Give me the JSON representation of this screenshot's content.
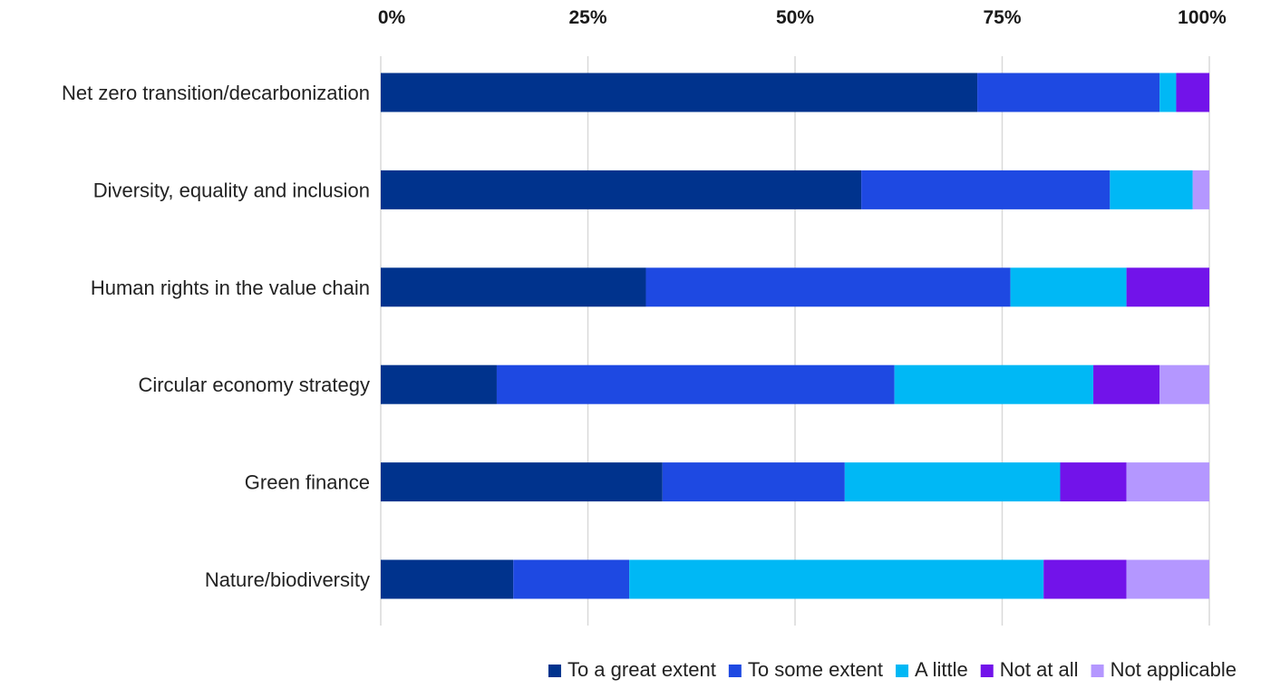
{
  "chart_data": {
    "type": "bar",
    "orientation": "horizontal",
    "stacked": true,
    "percent_stacked": true,
    "categories": [
      "Net zero transition/decarbonization",
      "Diversity, equality and inclusion",
      "Human rights in the value chain",
      "Circular economy strategy",
      "Green finance",
      "Nature/biodiversity"
    ],
    "series": [
      {
        "name": "To a great extent",
        "color": "#00338D",
        "values": [
          72,
          58,
          32,
          14,
          34,
          16
        ]
      },
      {
        "name": "To some extent",
        "color": "#1E49E2",
        "values": [
          22,
          30,
          44,
          48,
          22,
          14
        ]
      },
      {
        "name": "A little",
        "color": "#00B8F5",
        "values": [
          2,
          10,
          14,
          24,
          26,
          50
        ]
      },
      {
        "name": "Not at all",
        "color": "#7213EA",
        "values": [
          4,
          0,
          10,
          8,
          8,
          10
        ]
      },
      {
        "name": "Not applicable",
        "color": "#B497FF",
        "values": [
          0,
          2,
          0,
          6,
          10,
          10
        ]
      }
    ],
    "x_ticks": [
      "0%",
      "25%",
      "50%",
      "75%",
      "100%"
    ],
    "xlim": [
      0,
      100
    ],
    "x_axis_position": "top",
    "grid": true,
    "legend_position": "bottom-right",
    "title": "",
    "xlabel": "",
    "ylabel": ""
  }
}
